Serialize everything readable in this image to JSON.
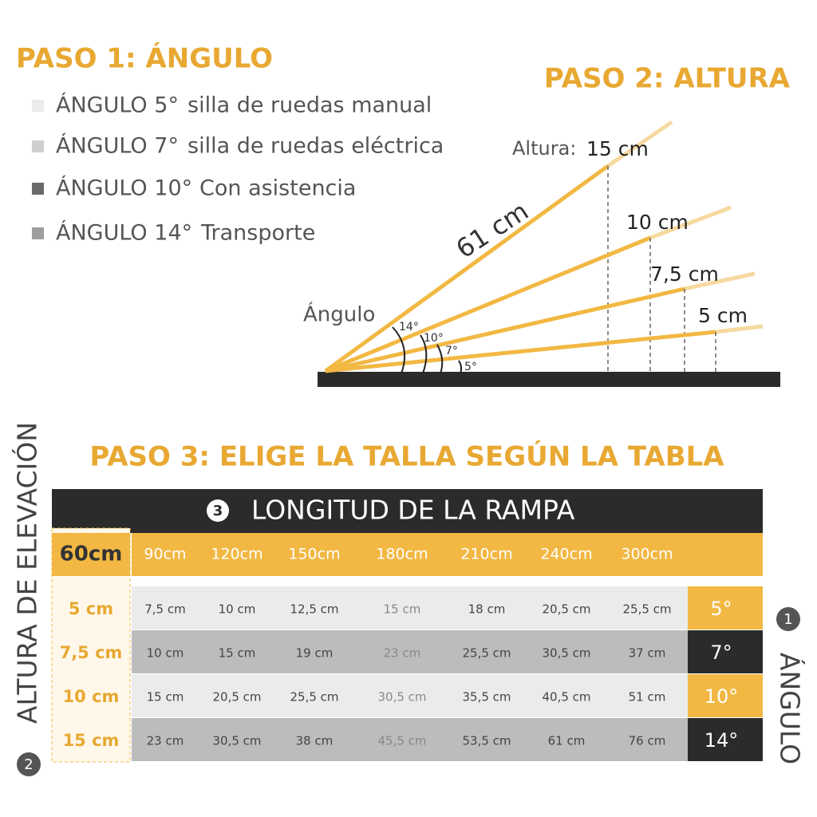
{
  "step1": {
    "title": "PASO 1: ÁNGULO",
    "items": [
      {
        "angle": "ÁNGULO 5°",
        "label": "silla de ruedas manual"
      },
      {
        "angle": "ÁNGULO 7°",
        "label": "silla de ruedas eléctrica"
      },
      {
        "angle": "ÁNGULO 10°",
        "label": "Con asistencia"
      },
      {
        "angle": "ÁNGULO 14°",
        "label": "Transporte"
      }
    ]
  },
  "step2": {
    "title": "PASO 2: ALTURA",
    "height_label": "Altura:",
    "length": "61 cm",
    "angle_label": "Ángulo",
    "angles": [
      "14°",
      "10°",
      "7°",
      "5°"
    ],
    "heights": [
      "15 cm",
      "10 cm",
      "7,5 cm",
      "5 cm"
    ]
  },
  "step3": {
    "title": "PASO 3: ELIGE LA TALLA SEGÚN LA TABLA",
    "table": {
      "header_number": "3",
      "header": "LONGITUD DE LA RAMPA",
      "corner": "60cm",
      "columns": [
        "90cm",
        "120cm",
        "150cm",
        "180cm",
        "210cm",
        "240cm",
        "300cm"
      ],
      "rows": [
        {
          "height": "5 cm",
          "cells": [
            "7,5 cm",
            "10 cm",
            "12,5 cm",
            "15 cm",
            "18 cm",
            "20,5 cm",
            "25,5 cm"
          ],
          "angle": "5°"
        },
        {
          "height": "7,5 cm",
          "cells": [
            "10 cm",
            "15 cm",
            "19 cm",
            "23 cm",
            "25,5 cm",
            "30,5 cm",
            "37 cm"
          ],
          "angle": "7°"
        },
        {
          "height": "10 cm",
          "cells": [
            "15 cm",
            "20,5 cm",
            "25,5 cm",
            "30,5 cm",
            "35,5 cm",
            "40,5 cm",
            "51 cm"
          ],
          "angle": "10°"
        },
        {
          "height": "15 cm",
          "cells": [
            "23 cm",
            "30,5 cm",
            "38 cm",
            "45,5 cm",
            "53,5 cm",
            "61 cm",
            "76 cm"
          ],
          "angle": "14°"
        }
      ]
    },
    "row_axis_number": "2",
    "row_axis": "ALTURA DE ELEVACIÓN",
    "col_axis_number": "1",
    "col_axis": "ÁNGULO"
  }
}
